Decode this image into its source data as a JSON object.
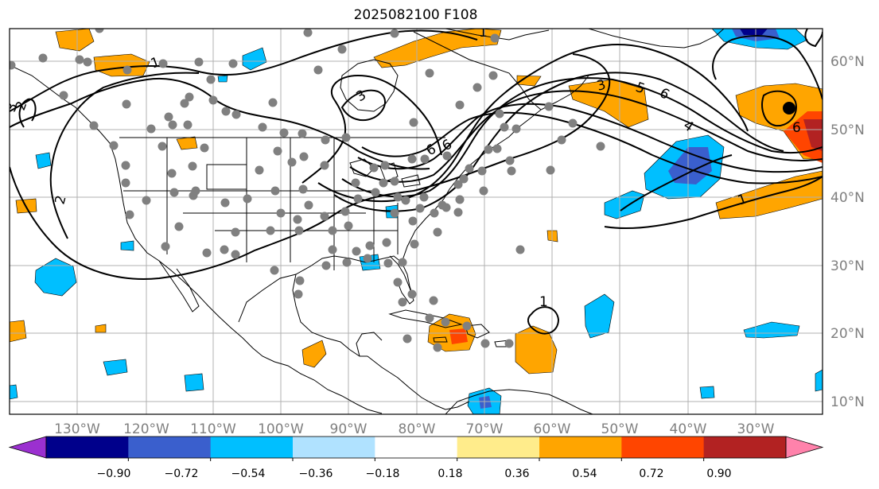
{
  "title": "2025082100 F108",
  "lon_labels": [
    "130°W",
    "120°W",
    "110°W",
    "100°W",
    "90°W",
    "80°W",
    "70°W",
    "60°W",
    "50°W",
    "40°W",
    "30°W"
  ],
  "lat_labels": [
    "60°N",
    "50°N",
    "40°N",
    "30°N",
    "20°N",
    "10°N"
  ],
  "colorbar": {
    "ticks": [
      "−0.90",
      "−0.72",
      "−0.54",
      "−0.36",
      "−0.18",
      "0.18",
      "0.36",
      "0.54",
      "0.72",
      "0.90"
    ],
    "colors": [
      "#9b30d0",
      "#00008b",
      "#3a5fcd",
      "#00bfff",
      "#b0e2ff",
      "#ffffff",
      "#ffec8b",
      "#ffa500",
      "#ff4500",
      "#b22222",
      "#ff82ab"
    ]
  },
  "contour_labels": [
    "1",
    "3",
    "2",
    "2",
    "3",
    "6",
    "6",
    "3",
    "5",
    "6",
    "4",
    "1",
    "6",
    "1",
    "1"
  ],
  "colors": {
    "contour": "#000000",
    "station": "#808080",
    "land_outline": "#000000",
    "grid": "#b0b0b0"
  }
}
